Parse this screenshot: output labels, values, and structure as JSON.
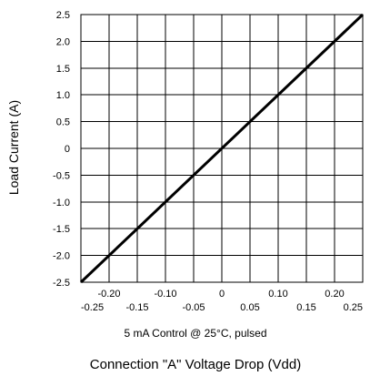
{
  "chart_data": {
    "type": "line",
    "title": "",
    "xlabel": "Connection \"A\" Voltage Drop (Vdd)",
    "ylabel": "Load Current (A)",
    "annotation": "5 mA Control @ 25°C, pulsed",
    "xlim": [
      -0.25,
      0.25
    ],
    "ylim": [
      -2.5,
      2.5
    ],
    "grid": true,
    "legend": "none",
    "x_ticks_lower": [
      "-0.25",
      "-0.15",
      "-0.05",
      "0.05",
      "0.15",
      "0.25"
    ],
    "x_ticks_upper": [
      "-0.20",
      "-0.10",
      "0",
      "0.10",
      "0.20"
    ],
    "y_ticks": [
      "2.5",
      "2.0",
      "1.5",
      "1.0",
      "0.5",
      "0",
      "-0.5",
      "-1.0",
      "-1.5",
      "-2.0",
      "-2.5"
    ],
    "series": [
      {
        "x": [
          -0.25,
          0.25
        ],
        "y": [
          -2.5,
          2.5
        ],
        "color": "#000000"
      }
    ]
  }
}
